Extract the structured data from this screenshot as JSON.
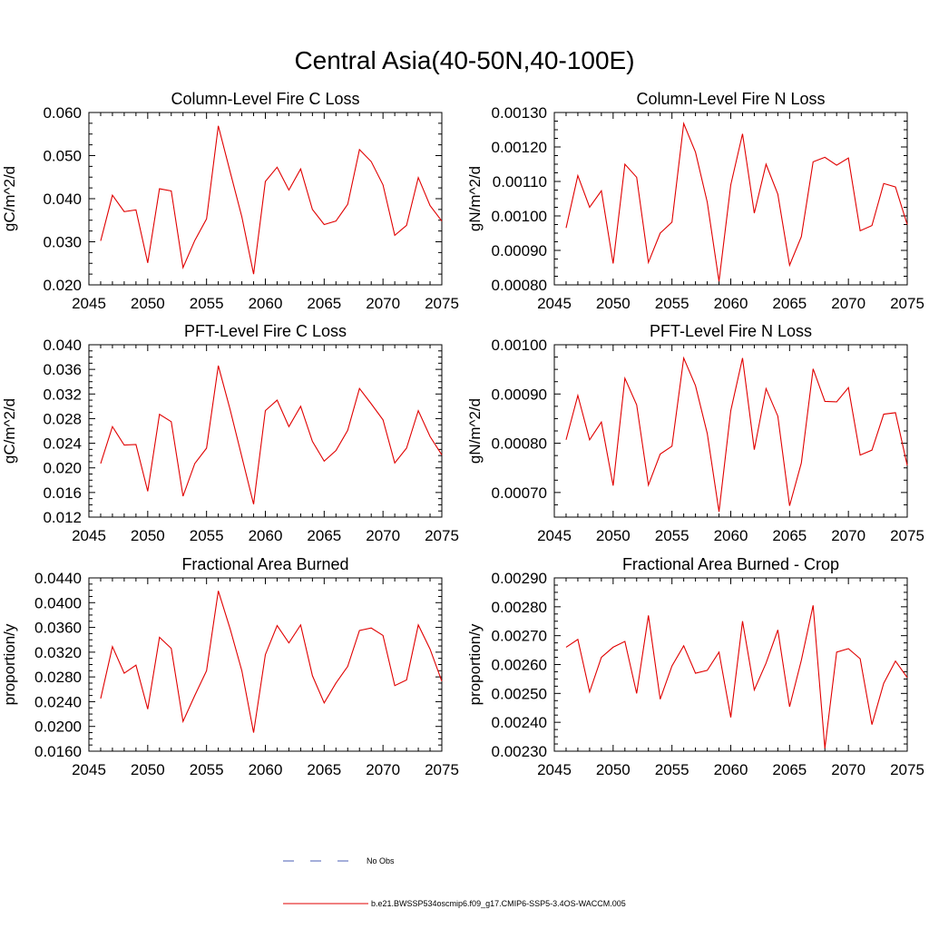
{
  "title": "Central Asia(40-50N,40-100E)",
  "legend": {
    "obs": {
      "label": "No Obs",
      "color": "#4a5db4"
    },
    "model": {
      "label": "b.e21.BWSSP534oscmip6.f09_g17.CMIP6-SSP5-3.4OS-WACCM.005",
      "color": "#e00000"
    }
  },
  "chart_data": [
    {
      "type": "line",
      "title": "Column-Level Fire C Loss",
      "ylabel": "gC/m^2/d",
      "xlim": [
        2045,
        2075
      ],
      "ylim": [
        0.02,
        0.06
      ],
      "xticks": [
        "2045",
        "2050",
        "2055",
        "2060",
        "2065",
        "2070",
        "2075"
      ],
      "yticks": [
        "0.020",
        "0.030",
        "0.040",
        "0.050",
        "0.060"
      ],
      "series": [
        {
          "name": "b.e21.BWSSP534oscmip6.f09_g17.CMIP6-SSP5-3.4OS-WACCM.005",
          "x": [
            2046,
            2047,
            2048,
            2049,
            2050,
            2051,
            2052,
            2053,
            2054,
            2055,
            2056,
            2057,
            2058,
            2059,
            2060,
            2061,
            2062,
            2063,
            2064,
            2065,
            2066,
            2067,
            2068,
            2069,
            2070,
            2071,
            2072,
            2073,
            2074,
            2075
          ],
          "values": [
            0.0302,
            0.0408,
            0.037,
            0.0374,
            0.0251,
            0.0423,
            0.0418,
            0.024,
            0.0303,
            0.0353,
            0.0569,
            0.0463,
            0.0358,
            0.0225,
            0.044,
            0.0473,
            0.042,
            0.0469,
            0.0375,
            0.034,
            0.0348,
            0.0387,
            0.0514,
            0.0486,
            0.0432,
            0.0315,
            0.0338,
            0.0449,
            0.0384,
            0.0348
          ]
        }
      ]
    },
    {
      "type": "line",
      "title": "Column-Level Fire N Loss",
      "ylabel": "gN/m^2/d",
      "xlim": [
        2045,
        2075
      ],
      "ylim": [
        0.0008,
        0.0013
      ],
      "xticks": [
        "2045",
        "2050",
        "2055",
        "2060",
        "2065",
        "2070",
        "2075"
      ],
      "yticks": [
        "0.00080",
        "0.00090",
        "0.00100",
        "0.00110",
        "0.00120",
        "0.00130"
      ],
      "series": [
        {
          "name": "b.e21.BWSSP534oscmip6.f09_g17.CMIP6-SSP5-3.4OS-WACCM.005",
          "x": [
            2046,
            2047,
            2048,
            2049,
            2050,
            2051,
            2052,
            2053,
            2054,
            2055,
            2056,
            2057,
            2058,
            2059,
            2060,
            2061,
            2062,
            2063,
            2064,
            2065,
            2066,
            2067,
            2068,
            2069,
            2070,
            2071,
            2072,
            2073,
            2074,
            2075
          ],
          "values": [
            0.000965,
            0.001117,
            0.001025,
            0.001073,
            0.000862,
            0.00115,
            0.001112,
            0.000865,
            0.00095,
            0.000982,
            0.001268,
            0.001185,
            0.00104,
            0.00081,
            0.00109,
            0.001238,
            0.001008,
            0.00115,
            0.001063,
            0.000857,
            0.00094,
            0.001157,
            0.00117,
            0.001147,
            0.001168,
            0.000957,
            0.000972,
            0.001094,
            0.001084,
            0.000975
          ]
        }
      ]
    },
    {
      "type": "line",
      "title": "PFT-Level Fire C Loss",
      "ylabel": "gC/m^2/d",
      "xlim": [
        2045,
        2075
      ],
      "ylim": [
        0.012,
        0.04
      ],
      "xticks": [
        "2045",
        "2050",
        "2055",
        "2060",
        "2065",
        "2070",
        "2075"
      ],
      "yticks": [
        "0.012",
        "0.016",
        "0.020",
        "0.024",
        "0.028",
        "0.032",
        "0.036",
        "0.040"
      ],
      "series": [
        {
          "name": "b.e21.BWSSP534oscmip6.f09_g17.CMIP6-SSP5-3.4OS-WACCM.005",
          "x": [
            2046,
            2047,
            2048,
            2049,
            2050,
            2051,
            2052,
            2053,
            2054,
            2055,
            2056,
            2057,
            2058,
            2059,
            2060,
            2061,
            2062,
            2063,
            2064,
            2065,
            2066,
            2067,
            2068,
            2069,
            2070,
            2071,
            2072,
            2073,
            2074,
            2075
          ],
          "values": [
            0.0207,
            0.0267,
            0.0237,
            0.0238,
            0.0162,
            0.0287,
            0.0275,
            0.0154,
            0.0207,
            0.0232,
            0.0366,
            0.0295,
            0.0218,
            0.0141,
            0.0293,
            0.031,
            0.0267,
            0.03,
            0.0243,
            0.0211,
            0.0228,
            0.0261,
            0.0329,
            0.0304,
            0.0278,
            0.0208,
            0.0232,
            0.0293,
            0.0251,
            0.0221
          ]
        }
      ]
    },
    {
      "type": "line",
      "title": "PFT-Level Fire N Loss",
      "ylabel": "gN/m^2/d",
      "xlim": [
        2045,
        2075
      ],
      "ylim": [
        0.00065,
        0.001
      ],
      "xticks": [
        "2045",
        "2050",
        "2055",
        "2060",
        "2065",
        "2070",
        "2075"
      ],
      "yticks": [
        "0.00070",
        "0.00080",
        "0.00090",
        "0.00100"
      ],
      "series": [
        {
          "name": "b.e21.BWSSP534oscmip6.f09_g17.CMIP6-SSP5-3.4OS-WACCM.005",
          "x": [
            2046,
            2047,
            2048,
            2049,
            2050,
            2051,
            2052,
            2053,
            2054,
            2055,
            2056,
            2057,
            2058,
            2059,
            2060,
            2061,
            2062,
            2063,
            2064,
            2065,
            2066,
            2067,
            2068,
            2069,
            2070,
            2071,
            2072,
            2073,
            2074,
            2075
          ],
          "values": [
            0.000807,
            0.000897,
            0.000807,
            0.000843,
            0.000714,
            0.000932,
            0.000878,
            0.000715,
            0.000778,
            0.000794,
            0.000973,
            0.000917,
            0.00082,
            0.000661,
            0.000866,
            0.000973,
            0.000787,
            0.000911,
            0.000855,
            0.000673,
            0.00076,
            0.000951,
            0.000885,
            0.000884,
            0.000913,
            0.000776,
            0.000786,
            0.000859,
            0.000862,
            0.000755
          ]
        }
      ]
    },
    {
      "type": "line",
      "title": "Fractional Area Burned",
      "ylabel": "proportion/y",
      "xlim": [
        2045,
        2075
      ],
      "ylim": [
        0.016,
        0.044
      ],
      "xticks": [
        "2045",
        "2050",
        "2055",
        "2060",
        "2065",
        "2070",
        "2075"
      ],
      "yticks": [
        "0.0160",
        "0.0200",
        "0.0240",
        "0.0280",
        "0.0320",
        "0.0360",
        "0.0400",
        "0.0440"
      ],
      "series": [
        {
          "name": "b.e21.BWSSP534oscmip6.f09_g17.CMIP6-SSP5-3.4OS-WACCM.005",
          "x": [
            2046,
            2047,
            2048,
            2049,
            2050,
            2051,
            2052,
            2053,
            2054,
            2055,
            2056,
            2057,
            2058,
            2059,
            2060,
            2061,
            2062,
            2063,
            2064,
            2065,
            2066,
            2067,
            2068,
            2069,
            2070,
            2071,
            2072,
            2073,
            2074,
            2075
          ],
          "values": [
            0.0245,
            0.0329,
            0.0286,
            0.0299,
            0.0228,
            0.0344,
            0.0326,
            0.0208,
            0.025,
            0.029,
            0.0419,
            0.0358,
            0.029,
            0.019,
            0.0316,
            0.0363,
            0.0335,
            0.0364,
            0.0282,
            0.0238,
            0.027,
            0.0297,
            0.0355,
            0.0359,
            0.0347,
            0.0266,
            0.0275,
            0.0364,
            0.0325,
            0.0273
          ]
        }
      ]
    },
    {
      "type": "line",
      "title": "Fractional Area Burned - Crop",
      "ylabel": "proportion/y",
      "xlim": [
        2045,
        2075
      ],
      "ylim": [
        0.0023,
        0.0029
      ],
      "xticks": [
        "2045",
        "2050",
        "2055",
        "2060",
        "2065",
        "2070",
        "2075"
      ],
      "yticks": [
        "0.00230",
        "0.00240",
        "0.00250",
        "0.00260",
        "0.00270",
        "0.00280",
        "0.00290"
      ],
      "series": [
        {
          "name": "b.e21.BWSSP534oscmip6.f09_g17.CMIP6-SSP5-3.4OS-WACCM.005",
          "x": [
            2046,
            2047,
            2048,
            2049,
            2050,
            2051,
            2052,
            2053,
            2054,
            2055,
            2056,
            2057,
            2058,
            2059,
            2060,
            2061,
            2062,
            2063,
            2064,
            2065,
            2066,
            2067,
            2068,
            2069,
            2070,
            2071,
            2072,
            2073,
            2074,
            2075
          ],
          "values": [
            0.00266,
            0.002687,
            0.002505,
            0.002625,
            0.00266,
            0.00268,
            0.0025,
            0.00277,
            0.00248,
            0.002595,
            0.002665,
            0.00257,
            0.00258,
            0.002643,
            0.002417,
            0.00275,
            0.002512,
            0.002605,
            0.00272,
            0.002454,
            0.002615,
            0.002805,
            0.00231,
            0.002643,
            0.002655,
            0.00262,
            0.002392,
            0.002535,
            0.002612,
            0.002555
          ]
        }
      ]
    }
  ]
}
